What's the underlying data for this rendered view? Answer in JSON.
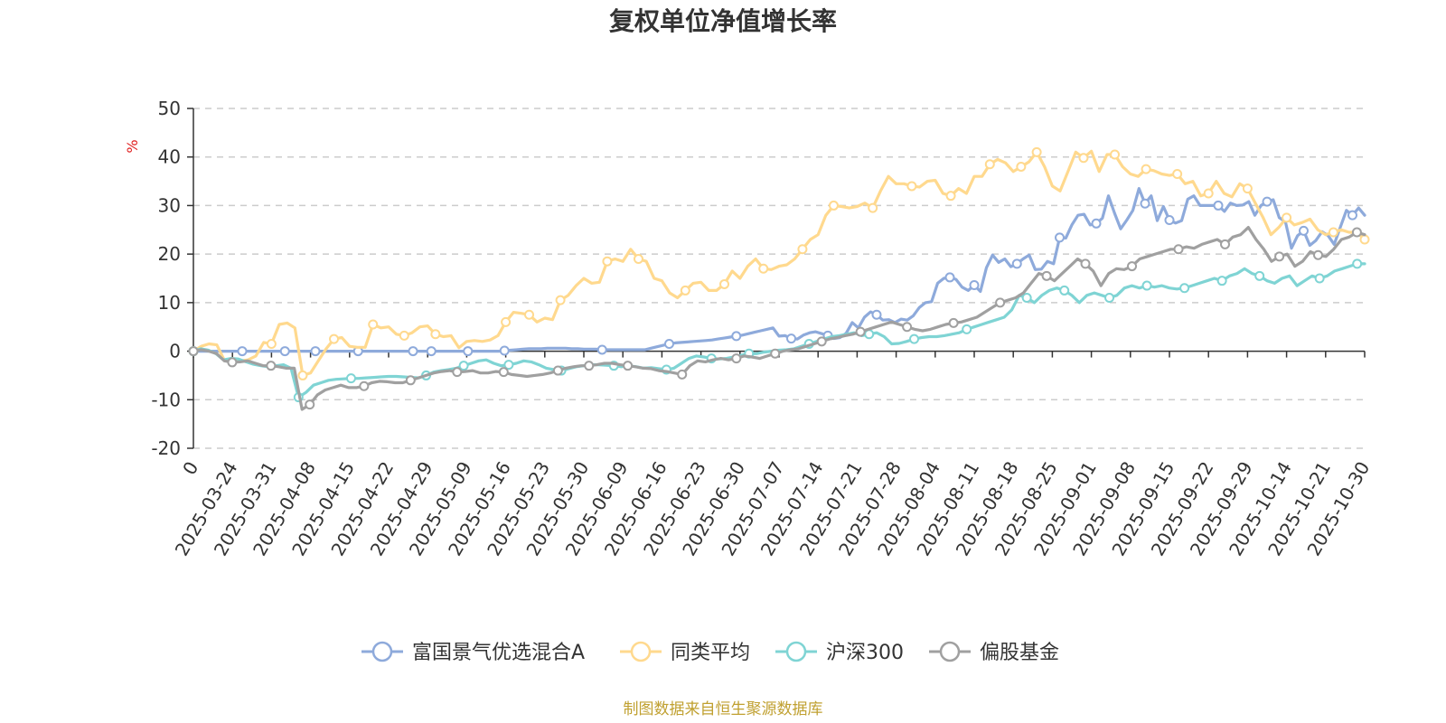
{
  "chart_data": {
    "type": "line",
    "title": "复权单位净值增长率",
    "ylabel": "%",
    "ylim": [
      -20,
      50
    ],
    "yticks": [
      -20,
      -10,
      0,
      10,
      20,
      30,
      40,
      50
    ],
    "x_labels": [
      "0",
      "2025-03-24",
      "2025-03-31",
      "2025-04-08",
      "2025-04-15",
      "2025-04-22",
      "2025-04-29",
      "2025-05-09",
      "2025-05-16",
      "2025-05-23",
      "2025-05-30",
      "2025-06-09",
      "2025-06-16",
      "2025-06-23",
      "2025-06-30",
      "2025-07-07",
      "2025-07-14",
      "2025-07-21",
      "2025-07-28",
      "2025-08-04",
      "2025-08-11",
      "2025-08-18",
      "2025-08-25",
      "2025-09-01",
      "2025-09-08",
      "2025-09-15",
      "2025-09-22",
      "2025-09-29",
      "2025-10-14",
      "2025-10-21",
      "2025-10-30"
    ],
    "grid": true,
    "legend_position": "bottom",
    "source_note": "制图数据来自恒生聚源数据库",
    "series": [
      {
        "name": "富国景气优选混合A",
        "color": "#8eaadb",
        "values": [
          0,
          0,
          0,
          0,
          0,
          0,
          0,
          0,
          0,
          0,
          0,
          0,
          0,
          0,
          0,
          0,
          0,
          0,
          0,
          0,
          0,
          0,
          0,
          0,
          0,
          0,
          0,
          0,
          0,
          0,
          0,
          0,
          0,
          0,
          0,
          0,
          0,
          0,
          0,
          0,
          0,
          0,
          0,
          0,
          0,
          0,
          0,
          0,
          0,
          0,
          0,
          0.1,
          0.2,
          0.3,
          0.4,
          0.5,
          0.5,
          0.5,
          0.6,
          0.6,
          0.6,
          0.6,
          0.5,
          0.5,
          0.4,
          0.4,
          0.4,
          0.3,
          0.3,
          0.3,
          0.3,
          0.3,
          0.3,
          0.3,
          0.3,
          0.6,
          0.9,
          1.2,
          1.5,
          1.7,
          1.8,
          1.9,
          2.0,
          2.1,
          2.2,
          2.3,
          2.5,
          2.7,
          2.9,
          3.1,
          3.3,
          3.6,
          3.9,
          4.2,
          4.5,
          4.8,
          3.1,
          3.2,
          2.6,
          2.5,
          3.3,
          3.8,
          4.0,
          3.6,
          3.2,
          2.6,
          2.8,
          3.7,
          5.9,
          4.8,
          7.0,
          8.1,
          7.5,
          6.4,
          6.5,
          5.9,
          6.6,
          6.4,
          7.3,
          9.0,
          10.0,
          10.2,
          14.0,
          15.0,
          15.2,
          14.8,
          13.2,
          12.5,
          13.6,
          12.3,
          17.2,
          19.8,
          18.3,
          19.0,
          17.4,
          18.0,
          19.0,
          19.8,
          16.8,
          16.9,
          18.5,
          18.0,
          23.4,
          23.3,
          26.0,
          28.0,
          28.2,
          26.0,
          26.3,
          27.4,
          32.0,
          28.4,
          25.2,
          27.0,
          29.0,
          33.5,
          30.4,
          32.0,
          26.9,
          29.8,
          27.0,
          26.4,
          26.9,
          31.3,
          32.0,
          30.0,
          30.0,
          30.0,
          30.0,
          28.8,
          30.5,
          30.0,
          30.1,
          30.8,
          28.0,
          30.0,
          30.8,
          31.2,
          27.5,
          26.7,
          21.2,
          23.8,
          24.8,
          21.8,
          22.8,
          24.6,
          23.8,
          22.0,
          25.5,
          29.0,
          28.0,
          29.5,
          28.0
        ],
        "markers": [
          0,
          8,
          15,
          20,
          27,
          36,
          39,
          45,
          51,
          67,
          78,
          89,
          98,
          104,
          112,
          124,
          128,
          135,
          142,
          148,
          156,
          160,
          168,
          176,
          182,
          190,
          198,
          202,
          208,
          214,
          220
        ]
      },
      {
        "name": "同类平均",
        "color": "#ffd98e",
        "values": [
          0,
          1.0,
          1.5,
          1.3,
          -2.0,
          -1.5,
          -2.0,
          -1.8,
          -1.0,
          1.8,
          1.5,
          5.5,
          5.8,
          4.8,
          -5.0,
          -4.5,
          -2.0,
          0.5,
          2.5,
          2.8,
          1.0,
          0.8,
          0.8,
          5.5,
          4.8,
          5.0,
          3.5,
          3.2,
          3.8,
          5.0,
          5.2,
          3.5,
          3.0,
          3.2,
          0.7,
          2.0,
          2.2,
          2.0,
          2.3,
          3.2,
          6.0,
          8.0,
          7.8,
          7.5,
          6.0,
          6.8,
          6.5,
          10.5,
          11.5,
          13.5,
          15.0,
          14.0,
          14.2,
          18.5,
          19.0,
          18.5,
          21.0,
          19.0,
          18.5,
          15.0,
          14.5,
          12.0,
          11.0,
          12.5,
          14.0,
          14.2,
          12.5,
          12.5,
          13.8,
          16.5,
          15.0,
          17.5,
          19.0,
          17.0,
          16.8,
          17.5,
          17.8,
          19.0,
          21.0,
          23.0,
          24.0,
          28.0,
          30.0,
          29.8,
          29.5,
          29.8,
          30.5,
          29.5,
          33.0,
          36.0,
          34.5,
          34.5,
          34.0,
          33.8,
          35.0,
          35.2,
          32.5,
          32.0,
          33.5,
          32.5,
          36.0,
          36.0,
          38.5,
          39.5,
          38.8,
          37.0,
          38.0,
          39.0,
          41.0,
          38.0,
          34.0,
          33.0,
          37.0,
          41.0,
          39.8,
          41.2,
          37.0,
          40.5,
          40.5,
          38.0,
          36.5,
          36.0,
          37.5,
          37.2,
          36.5,
          36.2,
          36.5,
          34.5,
          35.0,
          32.0,
          32.5,
          35.0,
          32.5,
          31.8,
          34.5,
          33.5,
          30.5,
          27.5,
          24.0,
          25.5,
          27.5,
          26.0,
          26.5,
          27.2,
          25.0,
          24.0,
          24.5,
          25.0,
          24.5,
          24.5,
          23.0
        ],
        "markers": [
          0,
          10,
          14,
          18,
          23,
          27,
          31,
          40,
          43,
          47,
          53,
          57,
          63,
          68,
          73,
          78,
          82,
          87,
          92,
          97,
          102,
          106,
          108,
          114,
          118,
          122,
          126,
          130,
          135,
          140,
          146,
          150
        ]
      },
      {
        "name": "沪深300",
        "color": "#7fd4d4",
        "values": [
          0,
          0.5,
          0.2,
          -0.5,
          -1.8,
          -1.5,
          -1.6,
          -2.2,
          -2.7,
          -3.0,
          -3.2,
          -3.0,
          -2.8,
          -3.5,
          -9.5,
          -8.5,
          -7.0,
          -6.5,
          -6.0,
          -5.8,
          -5.7,
          -5.6,
          -5.6,
          -5.5,
          -5.4,
          -5.3,
          -5.2,
          -5.2,
          -5.3,
          -5.4,
          -5.5,
          -5.0,
          -4.3,
          -4.0,
          -3.8,
          -3.5,
          -3.0,
          -2.5,
          -2.0,
          -1.8,
          -2.5,
          -3.0,
          -2.8,
          -2.5,
          -2.0,
          -2.2,
          -2.8,
          -3.5,
          -3.8,
          -4.0,
          -3.6,
          -3.2,
          -3.0,
          -2.8,
          -2.8,
          -2.9,
          -3.0,
          -3.2,
          -3.0,
          -3.2,
          -3.5,
          -3.4,
          -3.6,
          -3.8,
          -3.5,
          -2.5,
          -1.5,
          -1.0,
          -1.2,
          -1.5,
          -1.6,
          -1.5,
          -1.2,
          -0.8,
          -0.5,
          -0.5,
          -0.2,
          0,
          0.2,
          0.3,
          0.5,
          1.0,
          1.5,
          2.0,
          2.5,
          3.0,
          3.2,
          3.5,
          3.8,
          3.2,
          3.5,
          3.8,
          3.0,
          1.5,
          1.6,
          2.0,
          2.5,
          2.8,
          3.0,
          3.0,
          3.2,
          3.5,
          3.8,
          4.5,
          5.0,
          5.5,
          6.0,
          6.5,
          7.0,
          8.5,
          11.5,
          11.0,
          10.0,
          11.5,
          12.5,
          13.0,
          12.5,
          11.5,
          10.0,
          11.5,
          12.0,
          11.5,
          11.0,
          11.5,
          13.0,
          13.5,
          13.0,
          13.5,
          13.2,
          13.5,
          13.0,
          12.8,
          13.0,
          13.5,
          14.0,
          14.5,
          15.0,
          14.5,
          15.5,
          16.0,
          17.0,
          16.0,
          15.5,
          14.5,
          14.0,
          15.0,
          15.5,
          13.5,
          14.5,
          15.5,
          15.0,
          15.5,
          16.5,
          17.0,
          17.5,
          18.0,
          18.0
        ],
        "markers": [
          0,
          14,
          21,
          31,
          36,
          42,
          49,
          56,
          63,
          69,
          74,
          82,
          90,
          96,
          103,
          111,
          116,
          122,
          127,
          132,
          137,
          142,
          150,
          155
        ]
      },
      {
        "name": "偏股基金",
        "color": "#a0a0a0",
        "values": [
          0,
          0.3,
          0,
          -0.5,
          -2.0,
          -2.3,
          -2.2,
          -2.0,
          -2.5,
          -3.0,
          -3.0,
          -3.2,
          -3.5,
          -3.5,
          -12.0,
          -11.0,
          -9.0,
          -8.0,
          -7.5,
          -7.0,
          -7.5,
          -7.5,
          -7.2,
          -6.5,
          -6.2,
          -6.3,
          -6.5,
          -6.5,
          -6.0,
          -5.5,
          -5.0,
          -4.5,
          -4.2,
          -4.0,
          -4.3,
          -4.2,
          -4.0,
          -4.5,
          -4.5,
          -4.2,
          -4.3,
          -4.8,
          -5.0,
          -5.2,
          -5.0,
          -4.8,
          -4.5,
          -4.0,
          -3.5,
          -3.2,
          -3.0,
          -3.0,
          -2.8,
          -2.5,
          -2.5,
          -2.8,
          -3.0,
          -3.2,
          -3.5,
          -3.6,
          -4.0,
          -4.2,
          -4.5,
          -4.8,
          -3.0,
          -2.0,
          -2.2,
          -1.8,
          -1.5,
          -1.8,
          -1.5,
          -1.0,
          -1.2,
          -1.5,
          -1.0,
          -0.5,
          0,
          0.3,
          0.5,
          1.0,
          1.5,
          2.0,
          2.5,
          2.8,
          3.2,
          3.5,
          4.0,
          4.5,
          5.0,
          5.5,
          6.0,
          5.5,
          5.0,
          4.5,
          4.2,
          4.5,
          5.0,
          5.5,
          5.8,
          6.0,
          6.5,
          7.0,
          8.0,
          9.0,
          10.0,
          10.5,
          11.0,
          12.0,
          14.0,
          16.0,
          15.5,
          14.5,
          16.0,
          17.5,
          19.0,
          18.0,
          16.5,
          13.5,
          16.0,
          17.0,
          16.8,
          17.5,
          19.0,
          19.5,
          20.0,
          20.5,
          21.0,
          21.0,
          21.5,
          21.2,
          22.0,
          22.5,
          23.0,
          22.0,
          23.5,
          24.0,
          25.5,
          23.0,
          21.0,
          18.5,
          19.5,
          20.0,
          17.5,
          18.5,
          20.5,
          19.8,
          19.5,
          21.0,
          23.0,
          23.5,
          24.5,
          24.0
        ],
        "markers": [
          0,
          5,
          10,
          15,
          22,
          28,
          34,
          40,
          47,
          51,
          56,
          63,
          70,
          75,
          81,
          86,
          92,
          98,
          104,
          110,
          115,
          121,
          127,
          133,
          140,
          145,
          150
        ]
      }
    ]
  }
}
